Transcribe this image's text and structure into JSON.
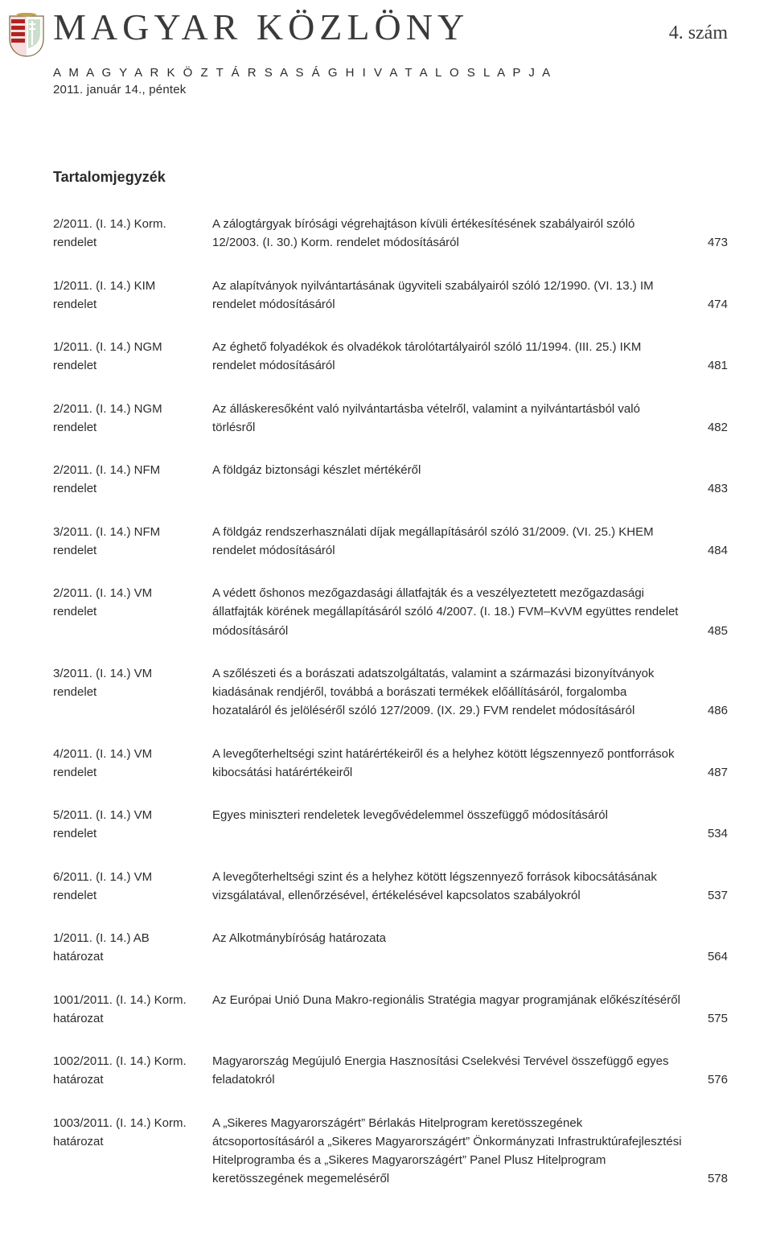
{
  "header": {
    "masthead": "MAGYAR  KÖZLÖNY",
    "issue": "4. szám",
    "sub1": "A  M A G Y A R  K Ö Z T Á R S A S Á G  H I V A T A L O S  L A P J A",
    "sub2": "2011. január 14., péntek",
    "toc_title": "Tartalomjegyzék"
  },
  "crest_colors": {
    "red": "#b22222",
    "green": "#2e7d32",
    "white": "#ffffff",
    "gold": "#c2a14a",
    "outline": "#7a6a3a"
  },
  "entries": [
    {
      "id1": "2/2011. (I. 14.) Korm.",
      "id2": "rendelet",
      "title": "A zálogtárgyak bírósági végrehajtáson kívüli értékesítésének szabályairól szóló 12/2003. (I. 30.) Korm. rendelet módosításáról",
      "page": "473"
    },
    {
      "id1": "1/2011. (I. 14.) KIM",
      "id2": "rendelet",
      "title": "Az alapítványok nyilvántartásának ügyviteli szabályairól szóló 12/1990. (VI. 13.) IM rendelet módosításáról",
      "page": "474"
    },
    {
      "id1": "1/2011. (I. 14.) NGM",
      "id2": "rendelet",
      "title": "Az éghető folyadékok és olvadékok tárolótartályairól szóló 11/1994. (III. 25.) IKM rendelet módosításáról",
      "page": "481"
    },
    {
      "id1": "2/2011. (I. 14.) NGM",
      "id2": "rendelet",
      "title": "Az álláskeresőként való nyilvántartásba vételről, valamint a nyilvántartásból való törlésről",
      "page": "482"
    },
    {
      "id1": "2/2011. (I. 14.) NFM",
      "id2": "rendelet",
      "title": "A földgáz biztonsági készlet mértékéről",
      "page": "483"
    },
    {
      "id1": "3/2011. (I. 14.) NFM",
      "id2": "rendelet",
      "title": "A földgáz rendszerhasználati díjak megállapításáról szóló 31/2009. (VI. 25.) KHEM rendelet módosításáról",
      "page": "484"
    },
    {
      "id1": "2/2011. (I. 14.) VM",
      "id2": "rendelet",
      "title": "A védett őshonos mezőgazdasági állatfajták és a veszélyeztetett mezőgazdasági állatfajták körének megállapításáról szóló 4/2007. (I. 18.) FVM–KvVM együttes rendelet módosításáról",
      "page": "485"
    },
    {
      "id1": "3/2011. (I. 14.) VM",
      "id2": "rendelet",
      "title": "A szőlészeti és a borászati adatszolgáltatás, valamint a származási bizonyítványok kiadásának rendjéről, továbbá a borászati termékek előállításáról, forgalomba hozataláról és jelöléséről szóló 127/2009. (IX. 29.) FVM rendelet módosításáról",
      "page": "486"
    },
    {
      "id1": "4/2011. (I. 14.) VM",
      "id2": "rendelet",
      "title": "A levegőterheltségi szint határértékeiről és a helyhez kötött légszennyező pontforrások kibocsátási határértékeiről",
      "page": "487"
    },
    {
      "id1": "5/2011. (I. 14.) VM",
      "id2": "rendelet",
      "title": "Egyes miniszteri rendeletek levegővédelemmel összefüggő módosításáról",
      "page": "534"
    },
    {
      "id1": "6/2011. (I. 14.) VM",
      "id2": "rendelet",
      "title": "A levegőterheltségi szint és a helyhez kötött légszennyező források kibocsátásának vizsgálatával, ellenőrzésével, értékelésével kapcsolatos szabályokról",
      "page": "537"
    },
    {
      "id1": "1/2011. (I. 14.) AB",
      "id2": "határozat",
      "title": "Az Alkotmánybíróság határozata",
      "page": "564"
    },
    {
      "id1": "1001/2011. (I. 14.) Korm.",
      "id2": "határozat",
      "title": "Az Európai Unió Duna Makro-regionális Stratégia magyar programjának előkészítéséről",
      "page": "575"
    },
    {
      "id1": "1002/2011. (I. 14.) Korm.",
      "id2": "határozat",
      "title": "Magyarország Megújuló Energia Hasznosítási Cselekvési Tervével összefüggő egyes feladatokról",
      "page": "576"
    },
    {
      "id1": "1003/2011. (I. 14.) Korm.",
      "id2": "határozat",
      "title": "A „Sikeres Magyarországért” Bérlakás Hitelprogram keretösszegének átcsoportosításáról a „Sikeres Magyarországért” Önkormányzati Infrastruktúrafejlesztési Hitelprogramba és a „Sikeres Magyarországért” Panel Plusz Hitelprogram keretösszegének megemeléséről",
      "page": "578"
    }
  ]
}
